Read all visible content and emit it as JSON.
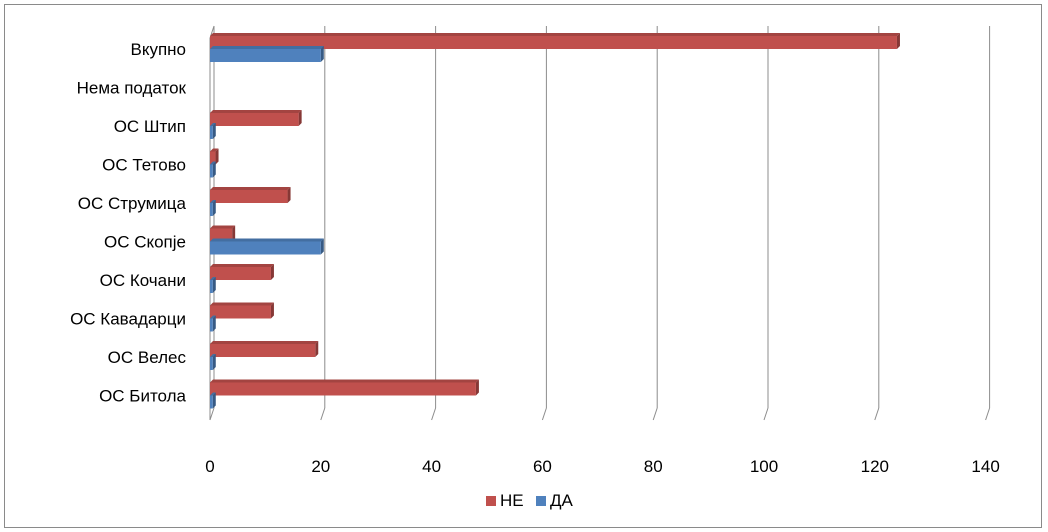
{
  "chart_data": {
    "type": "bar",
    "orientation": "horizontal",
    "style": "3d-clustered",
    "categories": [
      "ОС Битола",
      "ОС Велес",
      "ОС Кавадарци",
      "ОС Кочани",
      "ОС Скопје",
      "ОС Струмица",
      "ОС Тетово",
      "ОС Штип",
      "Нема податок",
      "Вкупно"
    ],
    "series": [
      {
        "name": "НЕ",
        "color": "#C0504D",
        "values": [
          48,
          19,
          11,
          11,
          4,
          14,
          1,
          16,
          0,
          124
        ]
      },
      {
        "name": "ДА",
        "color": "#4F81BD",
        "values": [
          0.5,
          0.5,
          0.5,
          0.5,
          20,
          0.5,
          0.5,
          0.5,
          0,
          20
        ]
      }
    ],
    "x_ticks": [
      "0",
      "20",
      "40",
      "60",
      "80",
      "100",
      "120",
      "140"
    ],
    "xlim": [
      0,
      140
    ],
    "title": "",
    "xlabel": "",
    "ylabel": "",
    "grid": true,
    "legend_position": "bottom"
  }
}
